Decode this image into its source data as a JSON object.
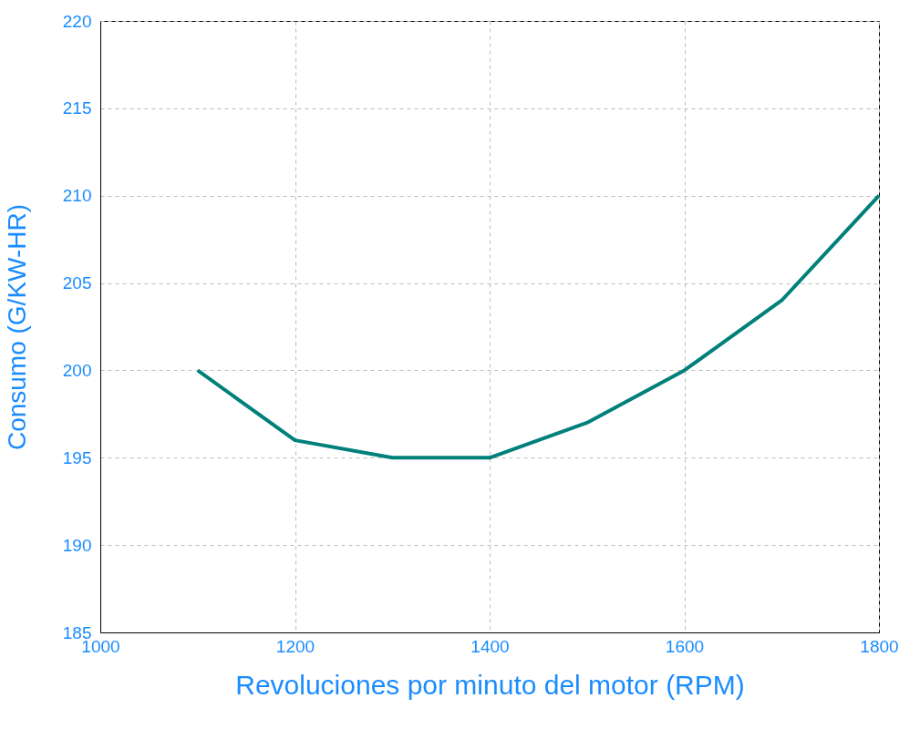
{
  "chart_data": {
    "type": "line",
    "xlabel": "Revoluciones por minuto del motor (RPM)",
    "ylabel": "Consumo  (G/KW-HR)",
    "x": [
      1100,
      1200,
      1300,
      1400,
      1500,
      1600,
      1700,
      1800
    ],
    "series": [
      {
        "color": "#00807a",
        "values": [
          200,
          196,
          195,
          195,
          197,
          200,
          204,
          210
        ]
      }
    ],
    "xlim": [
      1000,
      1800
    ],
    "xticks": [
      1000,
      1200,
      1400,
      1600,
      1800
    ],
    "ylim": [
      185,
      220
    ],
    "yticks": [
      185,
      190,
      195,
      200,
      205,
      210,
      215,
      220
    ],
    "grid": true,
    "marker": "none",
    "line_style": "solid"
  }
}
